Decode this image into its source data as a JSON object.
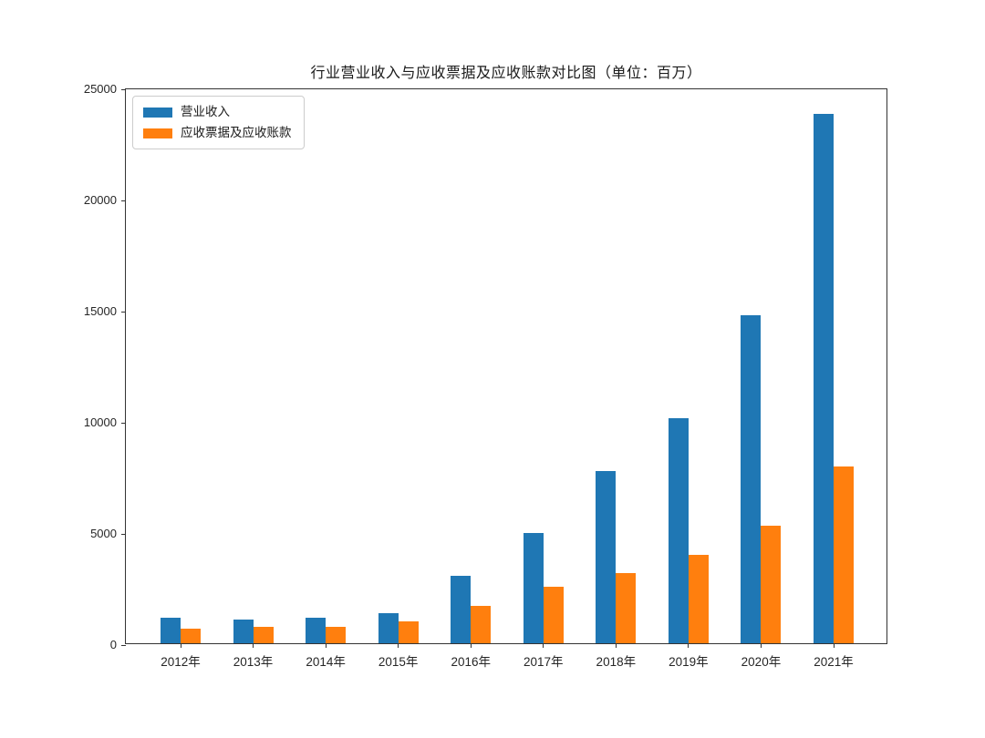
{
  "chart_data": {
    "type": "bar",
    "title": "行业营业收入与应收票据及应收账款对比图（单位：百万）",
    "categories": [
      "2012年",
      "2013年",
      "2014年",
      "2015年",
      "2016年",
      "2017年",
      "2018年",
      "2019年",
      "2020年",
      "2021年"
    ],
    "series": [
      {
        "id": "revenue",
        "name": "营业收入",
        "color": "#1f77b4",
        "values": [
          1140,
          1050,
          1160,
          1340,
          3050,
          4980,
          7760,
          10120,
          14770,
          23800
        ]
      },
      {
        "id": "receivables",
        "name": "应收票据及应收账款",
        "color": "#ff7f0e",
        "values": [
          660,
          730,
          750,
          970,
          1680,
          2540,
          3140,
          3980,
          5270,
          7940
        ]
      }
    ],
    "xlabel": "",
    "ylabel": "",
    "ylim": [
      0,
      25000
    ],
    "yticks": [
      0,
      5000,
      10000,
      15000,
      20000,
      25000
    ],
    "grid": false,
    "legend_position": "upper-left",
    "frame_color": "#333333",
    "background": "#ffffff"
  }
}
